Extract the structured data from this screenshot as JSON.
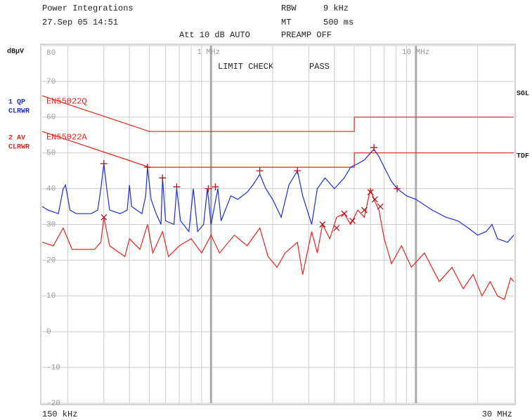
{
  "chart_data": {
    "type": "line",
    "header": {
      "company": "Power Integrations",
      "date": "27.Sep 05 14:51",
      "rbw_label": "RBW",
      "rbw": "9 kHz",
      "mt_label": "MT",
      "mt": "500 ms",
      "att": "Att 10 dB AUTO",
      "preamp": "PREAMP OFF"
    },
    "y_label": "dBµV",
    "trace_labels": [
      {
        "line1": "1 QP",
        "line2": "CLRWR",
        "color": "#1a2fd6"
      },
      {
        "line1": "2 AV",
        "line2": "CLRWR",
        "color": "#e8231c"
      }
    ],
    "right_labels": [
      "SGL",
      "TDF"
    ],
    "limit_check": "LIMIT CHECK",
    "limit_result": "PASS",
    "x_start_label": "150 kHz",
    "x_end_label": "30 MHz",
    "log_x": true,
    "grid": true,
    "xlim": [
      0.15,
      30
    ],
    "ylim": [
      -20,
      80
    ],
    "xticks": [
      {
        "value": 1,
        "label": "1 MHz"
      },
      {
        "value": 10,
        "label": "10 MHz"
      }
    ],
    "minor_xticks": [
      0.2,
      0.3,
      0.4,
      0.5,
      0.6,
      0.7,
      0.8,
      0.9,
      2,
      3,
      4,
      5,
      6,
      7,
      8,
      9,
      20
    ],
    "yticks": [
      80,
      70,
      60,
      50,
      40,
      30,
      20,
      10,
      0,
      -10,
      -20
    ],
    "limits": [
      {
        "name": "EN55022Q",
        "color": "#e8231c",
        "x": [
          0.15,
          0.5,
          0.5,
          5,
          5,
          30
        ],
        "values": [
          66,
          56,
          56,
          56,
          60,
          60
        ]
      },
      {
        "name": "EN55022A",
        "color": "#e8231c",
        "x": [
          0.15,
          0.5,
          0.5,
          5,
          5,
          30
        ],
        "values": [
          56,
          46,
          46,
          46,
          50,
          50
        ]
      }
    ],
    "series": [
      {
        "name": "QP",
        "color": "#1a2fd6",
        "x": [
          0.15,
          0.16,
          0.18,
          0.19,
          0.195,
          0.205,
          0.22,
          0.26,
          0.28,
          0.29,
          0.3,
          0.31,
          0.32,
          0.36,
          0.39,
          0.4,
          0.41,
          0.46,
          0.48,
          0.49,
          0.51,
          0.54,
          0.57,
          0.58,
          0.6,
          0.66,
          0.68,
          0.71,
          0.78,
          0.82,
          0.86,
          0.92,
          0.96,
          1.0,
          1.08,
          1.12,
          1.25,
          1.35,
          1.5,
          1.6,
          1.73,
          1.85,
          2.0,
          2.2,
          2.4,
          2.64,
          2.8,
          3.1,
          3.3,
          3.6,
          4.0,
          4.47,
          4.8,
          5.2,
          5.6,
          6.0,
          6.24,
          6.6,
          7.0,
          7.6,
          8.1,
          9.0,
          10,
          12,
          14,
          16,
          18,
          20,
          22,
          23.5,
          25,
          28,
          30
        ],
        "values": [
          35,
          34,
          33,
          40,
          41,
          34,
          33,
          33,
          34,
          40,
          47,
          40,
          34,
          33,
          34,
          41,
          35,
          33,
          38,
          46,
          37,
          33,
          30,
          43,
          31,
          30,
          40,
          31,
          28,
          40,
          28,
          30,
          40,
          30,
          40,
          31,
          38,
          37,
          39,
          41,
          44,
          40,
          37,
          32,
          41,
          45,
          38,
          30,
          40,
          43,
          40,
          43,
          46,
          47,
          48,
          50,
          51,
          49,
          46,
          42,
          40,
          38,
          37,
          34,
          32,
          31,
          29,
          27,
          28,
          30,
          26,
          25,
          27
        ]
      },
      {
        "name": "AV",
        "color": "#e8231c",
        "x": [
          0.15,
          0.17,
          0.19,
          0.21,
          0.27,
          0.29,
          0.3,
          0.32,
          0.38,
          0.4,
          0.45,
          0.49,
          0.52,
          0.58,
          0.62,
          0.7,
          0.8,
          0.9,
          1.0,
          1.1,
          1.3,
          1.5,
          1.73,
          1.9,
          2.1,
          2.3,
          2.64,
          2.8,
          3.1,
          3.3,
          3.5,
          3.8,
          4.1,
          4.47,
          4.8,
          5.2,
          5.6,
          6.0,
          6.24,
          6.6,
          7.0,
          7.6,
          8.5,
          9.5,
          11,
          13,
          15,
          17,
          19,
          21,
          23,
          25,
          27,
          29,
          30
        ],
        "values": [
          25,
          24,
          29,
          23,
          23,
          25,
          32,
          24,
          21,
          26,
          23,
          30,
          22,
          28,
          21,
          24,
          26,
          22,
          27,
          22,
          27,
          24,
          29,
          21,
          18,
          22,
          25,
          16,
          28,
          22,
          30,
          26,
          32,
          33,
          30,
          34,
          32,
          40,
          37,
          34,
          26,
          19,
          24,
          18,
          22,
          14,
          18,
          12,
          16,
          10,
          14,
          10,
          9,
          15,
          14
        ]
      }
    ],
    "qp_peaks": {
      "color": "#b0141c",
      "x": [
        0.3,
        0.49,
        0.58,
        0.68,
        0.97,
        1.05,
        1.73,
        2.64,
        6.24,
        8.1
      ],
      "values": [
        47,
        46,
        43,
        40.5,
        40,
        40.5,
        45,
        45,
        51.5,
        40
      ]
    },
    "av_peaks": {
      "color": "#b0141c",
      "x": [
        0.3,
        3.5,
        4.1,
        4.47,
        4.9,
        5.6,
        6.0,
        6.3,
        6.7
      ],
      "values": [
        32,
        30,
        29,
        33,
        31,
        34,
        39,
        37,
        35
      ]
    }
  }
}
